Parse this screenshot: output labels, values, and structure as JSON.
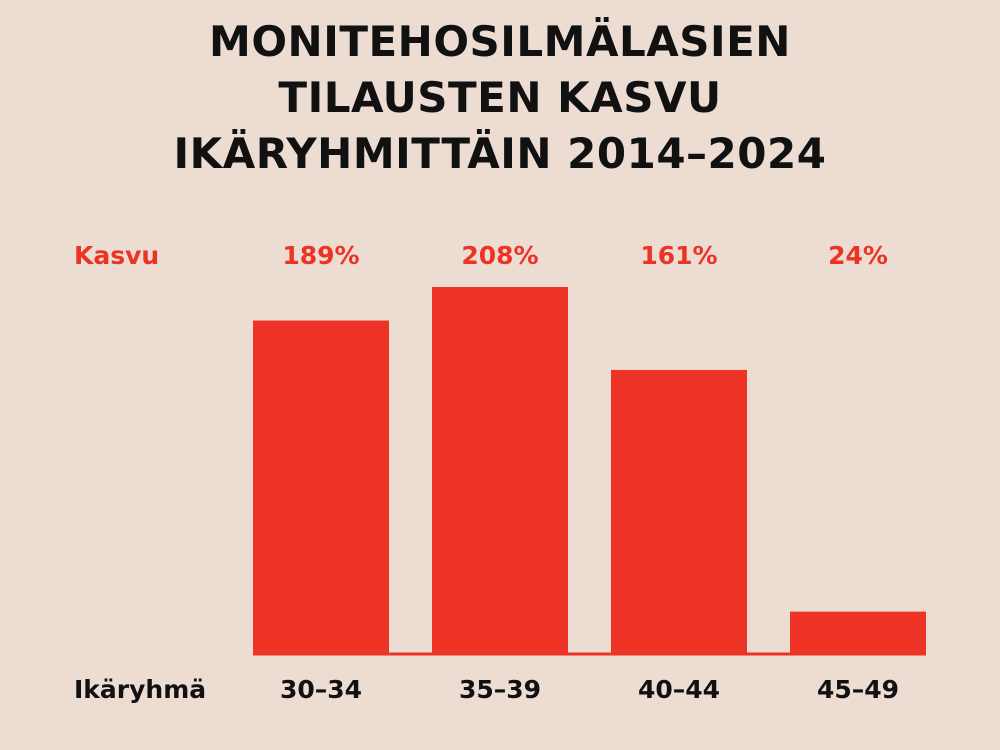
{
  "colors": {
    "background": "#eddcd2",
    "bar": "#ec3326",
    "value_text": "#ec3326",
    "category_text": "#111111",
    "title_text": "#111111"
  },
  "chart_data": {
    "type": "bar",
    "title_lines": [
      "MONITEHOSILMÄLASIEN",
      "TILAUSTEN KASVU",
      "IKÄRYHMITTÄIN 2014–2024"
    ],
    "categories": [
      "30–34",
      "35–39",
      "40–44",
      "45–49"
    ],
    "values": [
      189,
      208,
      161,
      24
    ],
    "value_labels": [
      "189%",
      "208%",
      "161%",
      "24%"
    ],
    "value_row_label": "Kasvu",
    "category_row_label": "Ikäryhmä",
    "ylim": [
      0,
      208
    ],
    "grid": false,
    "legend": "none"
  }
}
